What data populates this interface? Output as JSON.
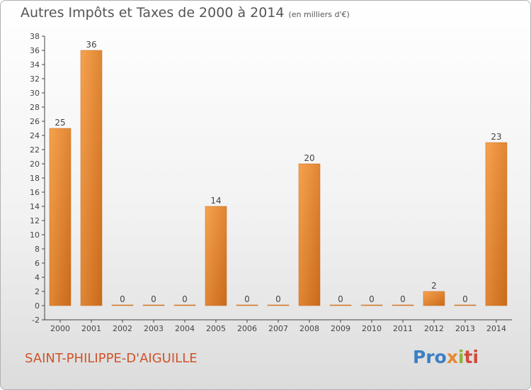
{
  "header": {
    "title": "Autres Impôts et Taxes de 2000 à 2014",
    "subtitle": "(en milliers d'€)"
  },
  "footer": {
    "location": "SAINT-PHILIPPE-D'AIGUILLE",
    "logo": [
      "Pro",
      "x",
      "i",
      "ti"
    ]
  },
  "colors": {
    "bar_light": "#f6a24e",
    "bar_dark": "#c96a1a",
    "axis": "#444444",
    "grid": "#cccccc",
    "location_text": "#d0532a"
  },
  "chart_data": {
    "type": "bar",
    "categories": [
      "2000",
      "2001",
      "2002",
      "2003",
      "2004",
      "2005",
      "2006",
      "2007",
      "2008",
      "2009",
      "2010",
      "2011",
      "2012",
      "2013",
      "2014"
    ],
    "values": [
      25,
      36,
      0,
      0,
      0,
      14,
      0,
      0,
      20,
      0,
      0,
      0,
      2,
      0,
      23
    ],
    "title": "Autres Impôts et Taxes de 2000 à 2014",
    "subtitle": "(en milliers d'€)",
    "xlabel": "",
    "ylabel": "",
    "ylim": [
      -2,
      38
    ],
    "yticks": [
      -2,
      0,
      2,
      4,
      6,
      8,
      10,
      12,
      14,
      16,
      18,
      20,
      22,
      24,
      26,
      28,
      30,
      32,
      34,
      36,
      38
    ],
    "grid": false,
    "legend": "none",
    "data_labels": true
  }
}
